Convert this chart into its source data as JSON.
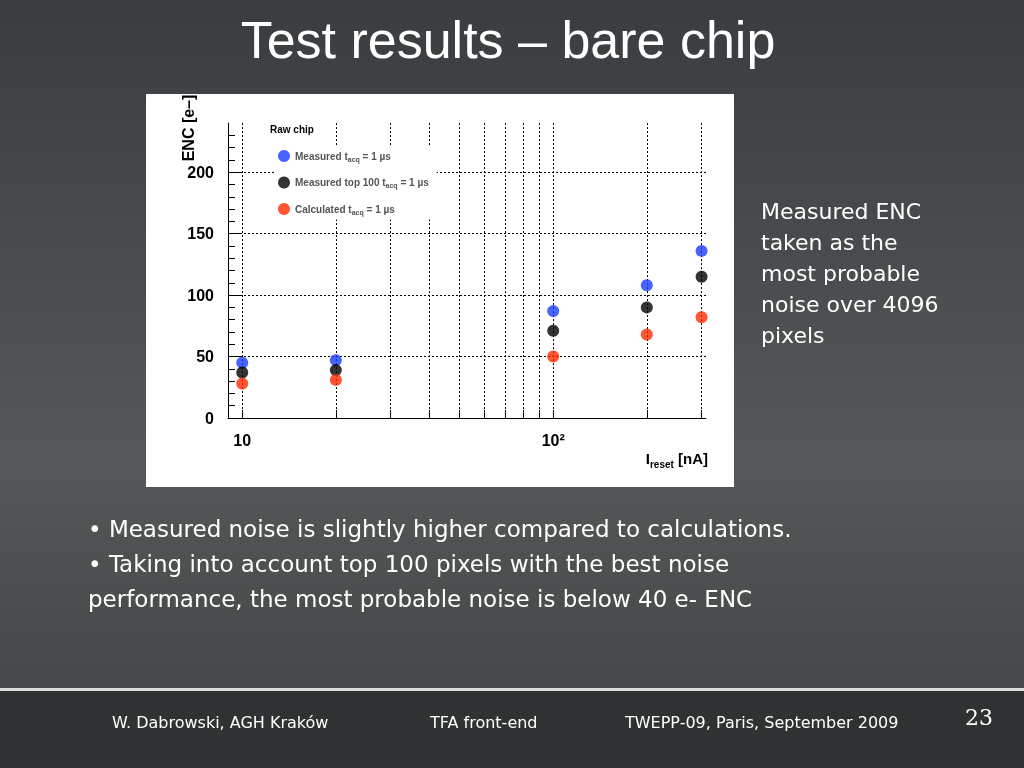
{
  "chart_data": {
    "type": "scatter",
    "title": "Test results – bare chip",
    "xlabel": "I$_{reset}$ [nA]",
    "ylabel": "ENC [e–]",
    "legend_title": "Raw chip",
    "x": [
      10,
      20,
      100,
      200,
      300
    ],
    "series": [
      {
        "name": "Measured t$_{acq}$ = 1 µs",
        "color": "#1a3cff",
        "values": [
          45,
          47,
          87,
          108,
          136
        ]
      },
      {
        "name": "Measured top 100 t$_{acq}$ = 1 µs",
        "color": "#000000",
        "values": [
          37,
          39,
          71,
          90,
          115
        ]
      },
      {
        "name": "Calculated t$_{acq}$ = 1 µs",
        "color": "#ff2a00",
        "values": [
          28,
          31,
          50,
          68,
          82
        ]
      }
    ],
    "log": "x",
    "xlim": [
      9,
      310
    ],
    "xticks": [
      {
        "value": 10,
        "label": "10"
      },
      {
        "value": 20,
        "label": null
      },
      {
        "value": 30,
        "label": null
      },
      {
        "value": 40,
        "label": null
      },
      {
        "value": 50,
        "label": null
      },
      {
        "value": 60,
        "label": null
      },
      {
        "value": 70,
        "label": null
      },
      {
        "value": 80,
        "label": null
      },
      {
        "value": 90,
        "label": null
      },
      {
        "value": 100,
        "label": "10²"
      },
      {
        "value": 200,
        "label": null
      },
      {
        "value": 300,
        "label": null
      }
    ],
    "ylim": [
      0,
      240
    ],
    "yticks": [
      0,
      50,
      100,
      150,
      200
    ],
    "grid": true,
    "legend": "top left",
    "marker": "circle",
    "annotations": [
      "Measured ENC taken as the most probable noise over 4096 pixels",
      "• Measured noise is slightly higher compared to calculations.",
      "• Taking into account top 100 pixels with the best noise performance, the most probable noise is below 40 e- ENC",
      "W. Dabrowski, AGH Kraków",
      "TFA front-end",
      "TWEPP-09, Paris, September 2009",
      "23"
    ]
  }
}
